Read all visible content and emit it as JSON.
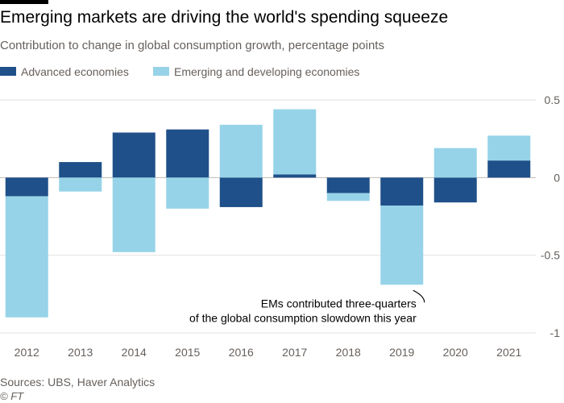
{
  "header": {
    "title": "Emerging markets are driving the world's spending squeeze",
    "subtitle": "Contribution to change in global consumption growth, percentage points"
  },
  "legend": {
    "items": [
      {
        "label": "Advanced economies",
        "color": "#1f5089"
      },
      {
        "label": "Emerging and developing economies",
        "color": "#96d3e8"
      }
    ]
  },
  "chart_data": {
    "type": "bar",
    "stacked": true,
    "title": "Emerging markets are driving the world's spending squeeze",
    "subtitle": "Contribution to change in global consumption growth, percentage points",
    "categories": [
      "2012",
      "2013",
      "2014",
      "2015",
      "2016",
      "2017",
      "2018",
      "2019",
      "2020",
      "2021"
    ],
    "series": [
      {
        "name": "Advanced economies",
        "color": "#1f5089",
        "values": [
          -0.12,
          0.1,
          0.29,
          0.31,
          -0.19,
          0.02,
          -0.1,
          -0.18,
          -0.16,
          0.11
        ]
      },
      {
        "name": "Emerging and developing economies",
        "color": "#96d3e8",
        "values": [
          -0.78,
          -0.09,
          -0.48,
          -0.2,
          0.34,
          0.42,
          -0.05,
          -0.51,
          0.19,
          0.16
        ]
      }
    ],
    "ylim": [
      -1.0,
      0.5
    ],
    "yticks": [
      0.5,
      0,
      -0.5,
      -1
    ],
    "ytick_labels": [
      "0.5",
      "0",
      "-0.5",
      "-1"
    ],
    "grid": true,
    "y_axis_side": "right",
    "legend_position": "top-left",
    "annotation": {
      "lines": [
        "EMs contributed three-quarters",
        "of the global consumption slowdown this year"
      ],
      "target_category": "2019"
    }
  },
  "footer": {
    "source": "Sources: UBS, Haver Analytics",
    "credit": "© FT"
  }
}
